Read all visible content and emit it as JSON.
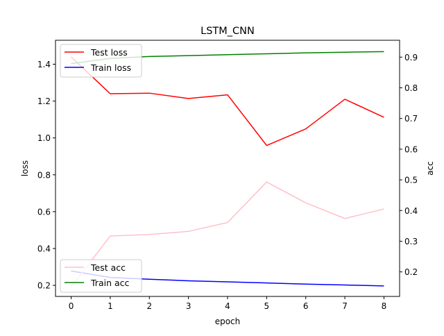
{
  "chart_data": {
    "type": "line",
    "title": "LSTM_CNN",
    "xlabel": "epoch",
    "ylabel_left": "loss",
    "ylabel_right": "acc",
    "x": [
      0,
      1,
      2,
      3,
      4,
      5,
      6,
      7,
      8
    ],
    "x_ticks": [
      "0",
      "1",
      "2",
      "3",
      "4",
      "5",
      "6",
      "7",
      "8"
    ],
    "y_left_ticks": [
      "0.2",
      "0.4",
      "0.6",
      "0.8",
      "1.0",
      "1.2",
      "1.4"
    ],
    "y_right_ticks": [
      "0.2",
      "0.3",
      "0.4",
      "0.5",
      "0.6",
      "0.7",
      "0.8",
      "0.9"
    ],
    "xlim": [
      -0.4,
      8.4
    ],
    "ylim_left": [
      0.14,
      1.53
    ],
    "ylim_right": [
      0.12,
      0.955
    ],
    "grid": false,
    "series": [
      {
        "name": "Test loss",
        "axis": "left",
        "color": "#ff0000",
        "values": [
          1.44,
          1.24,
          1.243,
          1.214,
          1.234,
          0.959,
          1.049,
          1.21,
          1.112
        ]
      },
      {
        "name": "Train loss",
        "axis": "left",
        "color": "#0000ff",
        "values": [
          0.278,
          0.243,
          0.233,
          0.225,
          0.219,
          0.213,
          0.207,
          0.202,
          0.197
        ]
      },
      {
        "name": "Test acc",
        "axis": "right",
        "color": "#ffc0cb",
        "values": [
          0.151,
          0.317,
          0.322,
          0.332,
          0.361,
          0.493,
          0.425,
          0.374,
          0.405
        ]
      },
      {
        "name": "Train acc",
        "axis": "right",
        "color": "#008000",
        "values": [
          0.879,
          0.896,
          0.902,
          0.905,
          0.908,
          0.911,
          0.914,
          0.916,
          0.918
        ]
      }
    ],
    "legends": [
      {
        "placement": "upper-left",
        "entries": [
          "Test loss",
          "Train loss"
        ]
      },
      {
        "placement": "lower-left",
        "entries": [
          "Test acc",
          "Train acc"
        ]
      }
    ]
  }
}
